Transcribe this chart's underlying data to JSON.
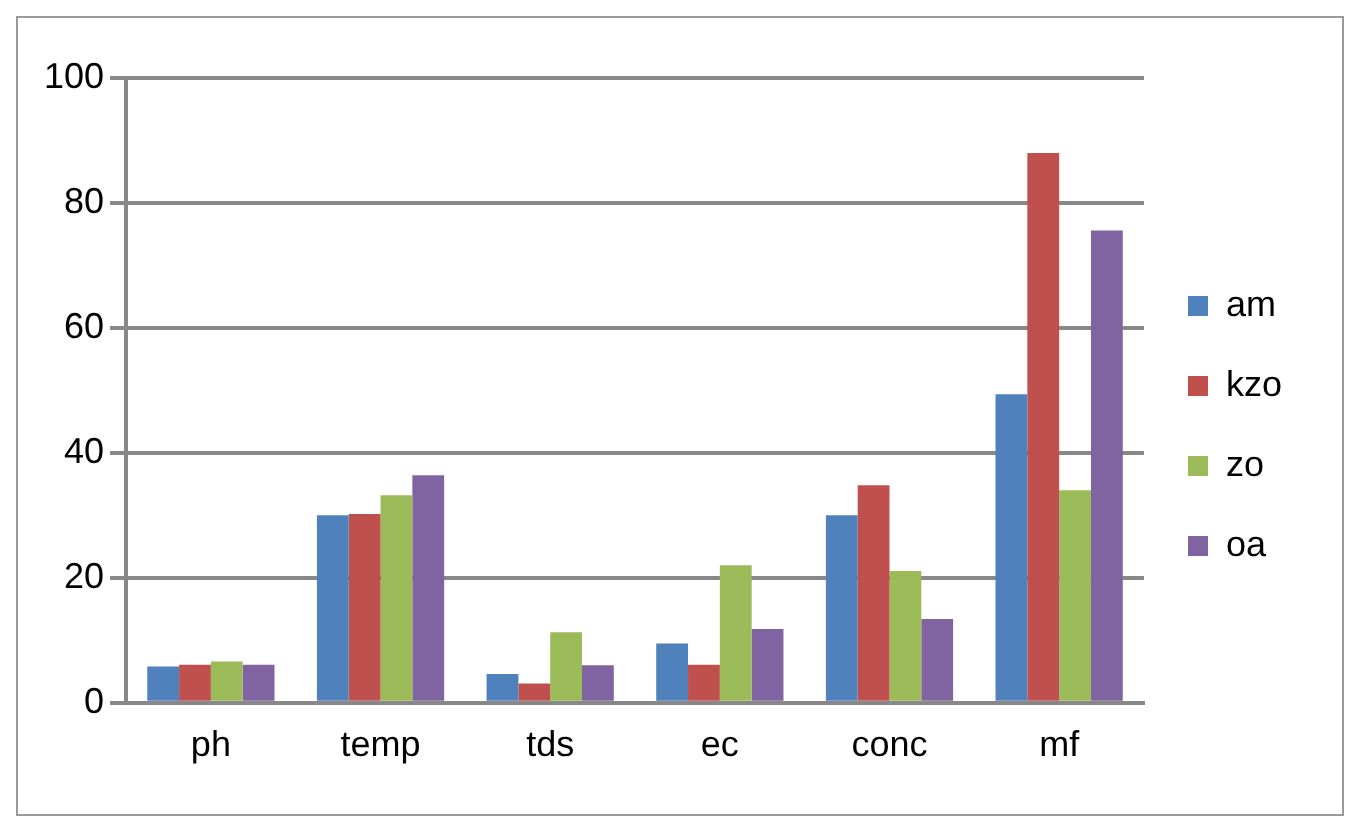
{
  "chart_data": {
    "type": "bar",
    "categories": [
      "ph",
      "temp",
      "tds",
      "ec",
      "conc",
      "mf"
    ],
    "series": [
      {
        "name": "am",
        "color": "#4f81bd",
        "values": [
          5.8,
          30,
          4.6,
          9.5,
          30,
          49.4
        ]
      },
      {
        "name": "kzo",
        "color": "#c0504d",
        "values": [
          6.1,
          30.2,
          3.1,
          6.1,
          34.8,
          88
        ]
      },
      {
        "name": "zo",
        "color": "#9bbb59",
        "values": [
          6.6,
          33.2,
          11.3,
          22,
          21.1,
          34
        ]
      },
      {
        "name": "oa",
        "color": "#8064a2",
        "values": [
          6.1,
          36.4,
          6,
          11.8,
          13.4,
          75.6
        ]
      }
    ],
    "ylim": [
      0,
      100
    ],
    "yticks": [
      0,
      20,
      40,
      60,
      80,
      100
    ],
    "grid": "y",
    "legend": "right"
  }
}
